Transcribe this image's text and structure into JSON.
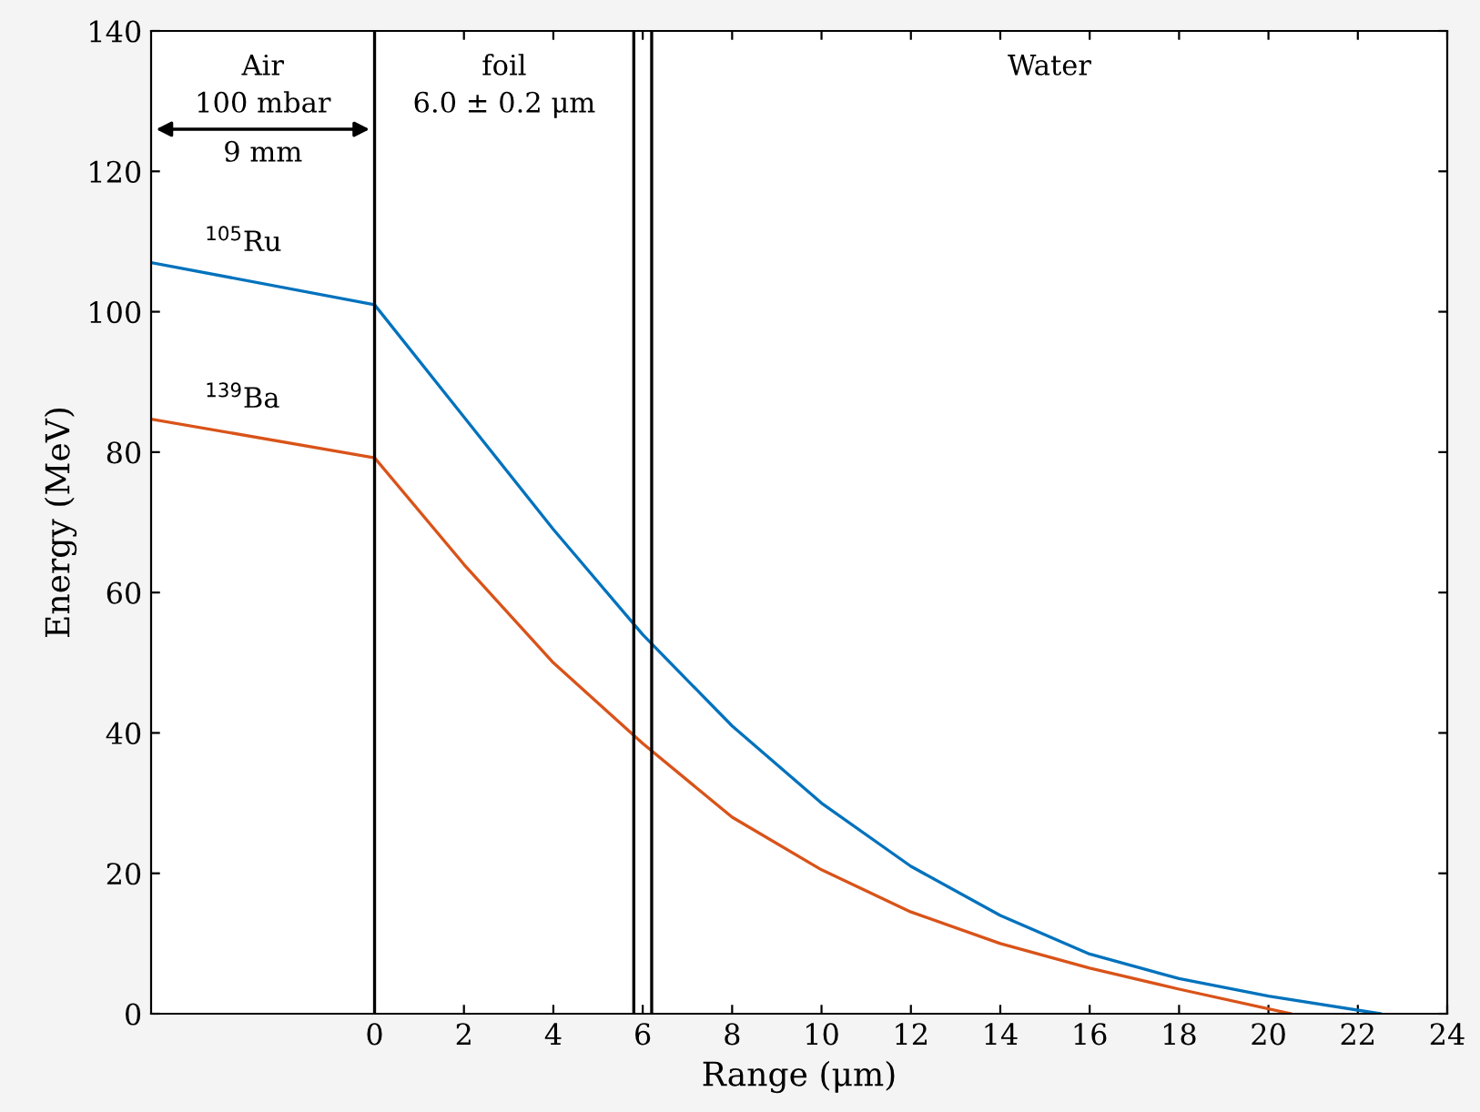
{
  "chart_data": {
    "type": "line",
    "xlabel": "Range (μm)",
    "ylabel": "Energy (MeV)",
    "xlim": [
      -5,
      24
    ],
    "ylim": [
      0,
      140
    ],
    "xticks": [
      0,
      2,
      4,
      6,
      8,
      10,
      12,
      14,
      16,
      18,
      20,
      22,
      24
    ],
    "yticks": [
      0,
      20,
      40,
      60,
      80,
      100,
      120,
      140
    ],
    "series": [
      {
        "name": "$^{105}$Ru",
        "color": "#0072bd",
        "x": [
          -5,
          0,
          2,
          4,
          6,
          8,
          10,
          12,
          14,
          16,
          18,
          20,
          22.5
        ],
        "values": [
          107,
          101,
          85,
          69,
          54,
          41,
          30,
          21,
          14,
          8.5,
          5,
          2.5,
          0
        ]
      },
      {
        "name": "$^{139}$Ba",
        "color": "#d95319",
        "x": [
          -5,
          0,
          2,
          4,
          6,
          8,
          10,
          12,
          14,
          16,
          18,
          20.5
        ],
        "values": [
          84.7,
          79.2,
          64,
          50,
          38.5,
          28,
          20.5,
          14.5,
          10,
          6.5,
          3.5,
          0
        ]
      }
    ],
    "ref_lines": [
      {
        "axis": "x",
        "value": 0,
        "color": "#000000"
      },
      {
        "axis": "x",
        "value": 5.8,
        "color": "#000000"
      },
      {
        "axis": "x",
        "value": 6.2,
        "color": "#000000"
      }
    ],
    "annotations": [
      "Air",
      "100 mbar",
      "9 mm",
      "foil",
      "6.0 ± 0.2 μm",
      "Water"
    ],
    "grid": false,
    "legend": false
  }
}
